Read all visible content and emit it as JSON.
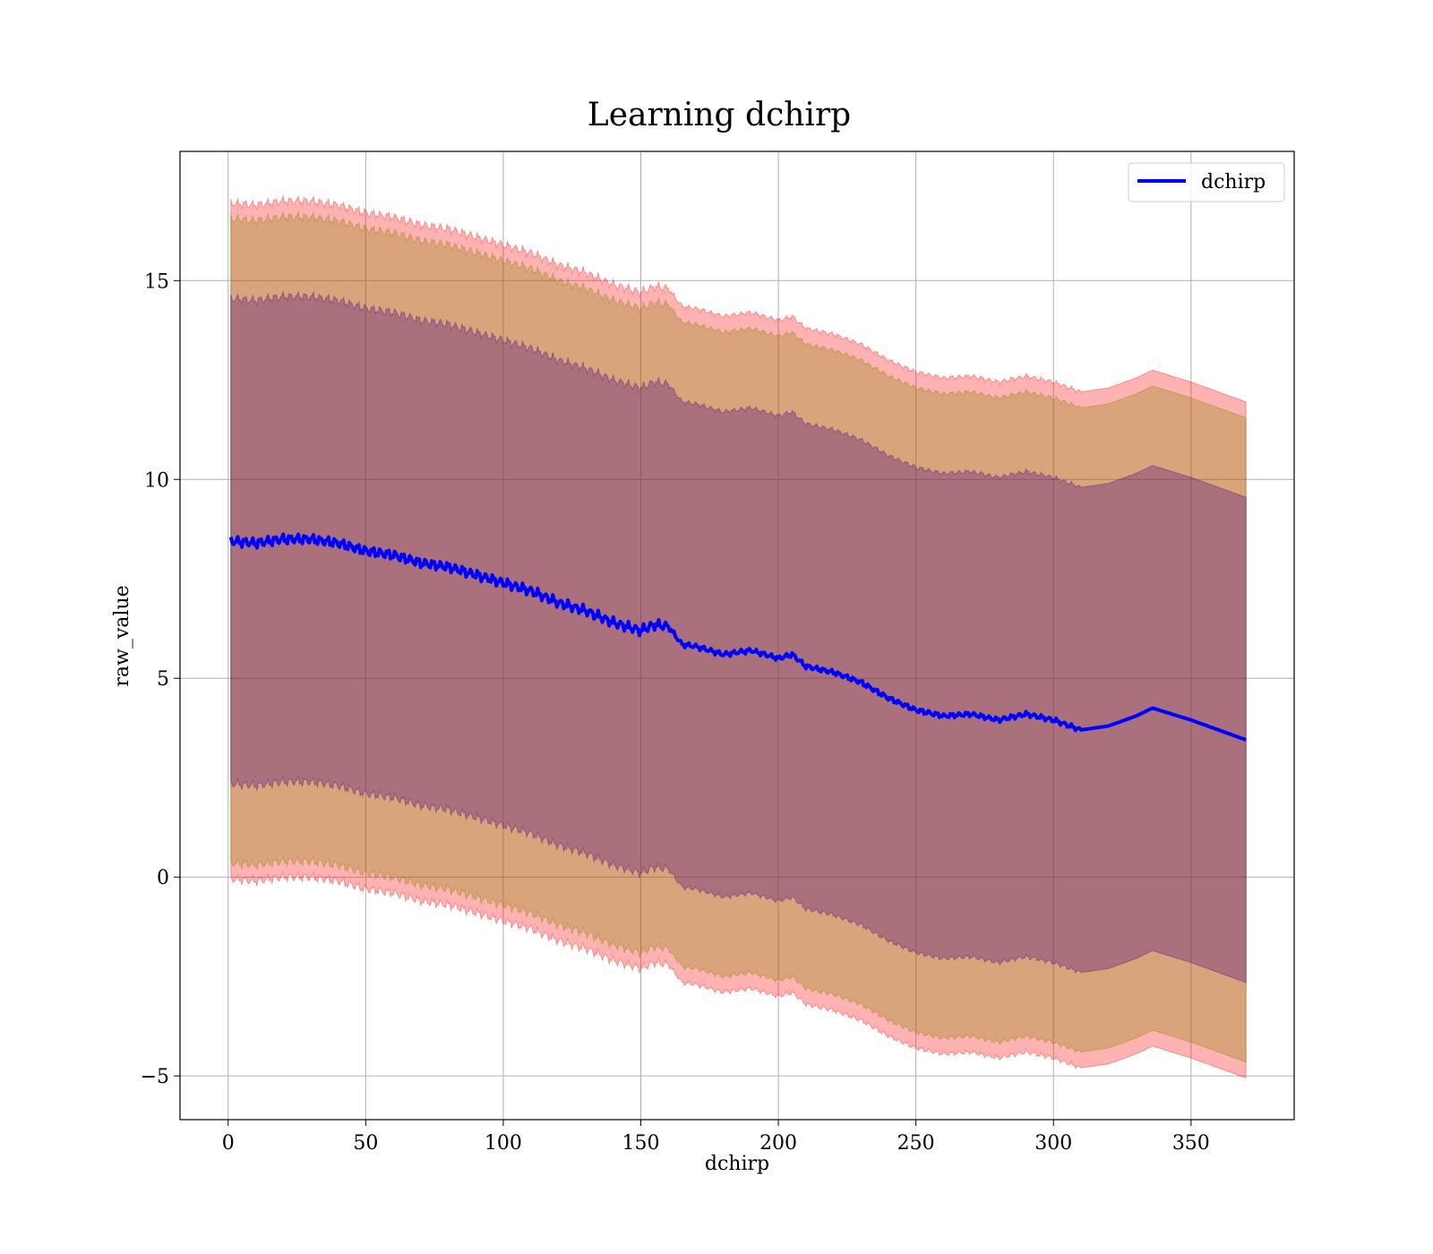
{
  "chart_data": {
    "type": "line",
    "title": "Learning dchirp",
    "xlabel": "dchirp",
    "ylabel": "raw_value",
    "xlim": [
      -17.5,
      387.5
    ],
    "ylim": [
      -6.1,
      18.25
    ],
    "xticks": [
      0,
      50,
      100,
      150,
      200,
      250,
      300,
      350
    ],
    "xtick_labels": [
      "0",
      "50",
      "100",
      "150",
      "200",
      "250",
      "300",
      "350"
    ],
    "yticks": [
      -5,
      0,
      5,
      10,
      15
    ],
    "ytick_labels": [
      "−5",
      "0",
      "5",
      "10",
      "15"
    ],
    "grid": true,
    "legend_position": "top-right",
    "series": [
      {
        "name": "dchirp",
        "color": "#0000ff",
        "x": [
          1,
          10,
          20,
          30,
          40,
          50,
          60,
          70,
          80,
          90,
          100,
          110,
          120,
          130,
          140,
          150,
          155,
          160,
          165,
          170,
          180,
          190,
          200,
          205,
          210,
          220,
          230,
          240,
          250,
          260,
          270,
          280,
          290,
          300,
          310,
          320,
          330,
          336,
          350,
          370
        ],
        "y": [
          8.45,
          8.4,
          8.5,
          8.5,
          8.4,
          8.2,
          8.1,
          7.9,
          7.8,
          7.6,
          7.4,
          7.2,
          6.9,
          6.7,
          6.4,
          6.2,
          6.35,
          6.3,
          5.85,
          5.8,
          5.6,
          5.7,
          5.5,
          5.6,
          5.3,
          5.15,
          4.9,
          4.5,
          4.2,
          4.05,
          4.1,
          3.95,
          4.1,
          3.95,
          3.7,
          3.8,
          4.05,
          4.25,
          3.95,
          3.45
        ]
      }
    ],
    "bands": [
      {
        "name": "",
        "color": "#ff0000",
        "opacity": 0.3,
        "lower_offset": -8.5,
        "upper_offset": 8.5
      },
      {
        "name": "",
        "color": "#808000",
        "opacity": 0.3,
        "lower_offset": -8.1,
        "upper_offset": 8.1
      },
      {
        "name": "",
        "color": "#400080",
        "opacity": 0.3,
        "lower_offset": -6.1,
        "upper_offset": 6.1
      }
    ]
  }
}
